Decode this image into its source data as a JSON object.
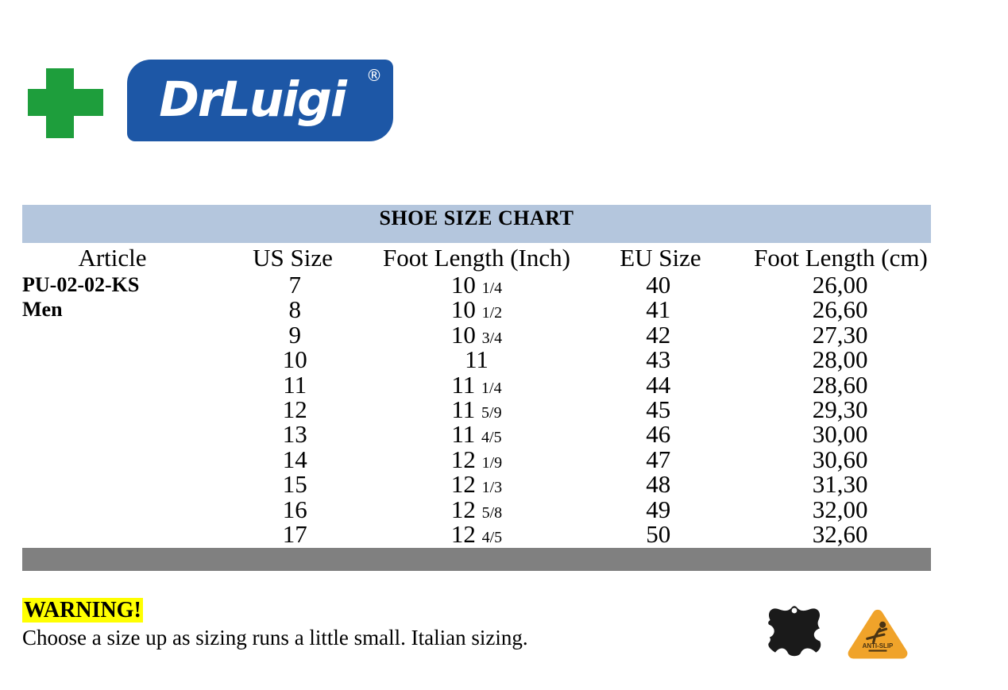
{
  "logo": {
    "brand": "DrLuigi",
    "registered": "®"
  },
  "table": {
    "title": "SHOE SIZE CHART",
    "columns": [
      "Article",
      "US Size",
      "Foot Length (Inch)",
      "EU Size",
      "Foot Length (cm)"
    ],
    "article_lines": [
      "PU-02-02-KS",
      "Men"
    ],
    "rows": [
      {
        "us": "7",
        "inch_whole": "10",
        "inch_frac": "1/4",
        "eu": "40",
        "cm": "26,00"
      },
      {
        "us": "8",
        "inch_whole": "10",
        "inch_frac": "1/2",
        "eu": "41",
        "cm": "26,60"
      },
      {
        "us": "9",
        "inch_whole": "10",
        "inch_frac": "3/4",
        "eu": "42",
        "cm": "27,30"
      },
      {
        "us": "10",
        "inch_whole": "11",
        "inch_frac": "",
        "eu": "43",
        "cm": "28,00"
      },
      {
        "us": "11",
        "inch_whole": "11",
        "inch_frac": "1/4",
        "eu": "44",
        "cm": "28,60"
      },
      {
        "us": "12",
        "inch_whole": "11",
        "inch_frac": "5/9",
        "eu": "45",
        "cm": "29,30"
      },
      {
        "us": "13",
        "inch_whole": "11",
        "inch_frac": "4/5",
        "eu": "46",
        "cm": "30,00"
      },
      {
        "us": "14",
        "inch_whole": "12",
        "inch_frac": "1/9",
        "eu": "47",
        "cm": "30,60"
      },
      {
        "us": "15",
        "inch_whole": "12",
        "inch_frac": "1/3",
        "eu": "48",
        "cm": "31,30"
      },
      {
        "us": "16",
        "inch_whole": "12",
        "inch_frac": "5/8",
        "eu": "49",
        "cm": "32,00"
      },
      {
        "us": "17",
        "inch_whole": "12",
        "inch_frac": "4/5",
        "eu": "50",
        "cm": "32,60"
      }
    ]
  },
  "warning": {
    "label": "WARNING!",
    "text": "Choose a size up as sizing runs a little small. Italian sizing."
  },
  "badges": {
    "anti_slip_label": "ANTI-SLIP"
  },
  "colors": {
    "header_band": "#b4c6dd",
    "gray_bar": "#808080",
    "logo_blue": "#1d57a6",
    "cross_green": "#1e9e3c",
    "highlight": "#ffff00",
    "badge_orange": "#f0a32a"
  }
}
